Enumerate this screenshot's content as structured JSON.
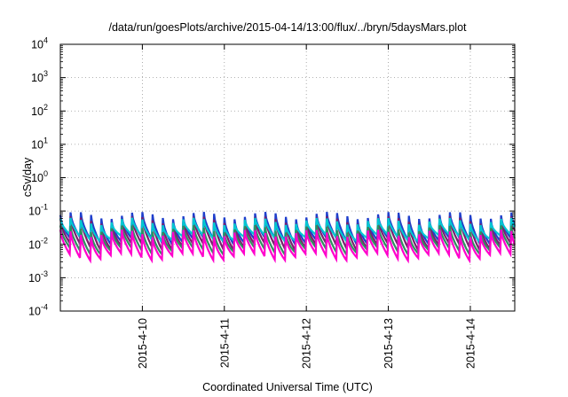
{
  "chart_data": {
    "type": "line",
    "title": "/data/run/goesPlots/archive/2015-04-14/13:00/flux/../bryn/5daysMars.plot",
    "xlabel": "Coordinated Universal Time (UTC)",
    "ylabel": "cSv/day",
    "yscale": "log",
    "ylim": [
      0.0001,
      10000
    ],
    "xlim": [
      "2015-04-09 00:00",
      "2015-04-14 13:00"
    ],
    "grid": true,
    "y_ticks": [
      {
        "value": 0.0001,
        "base": "10",
        "exp": "-4"
      },
      {
        "value": 0.001,
        "base": "10",
        "exp": "-3"
      },
      {
        "value": 0.01,
        "base": "10",
        "exp": "-2"
      },
      {
        "value": 0.1,
        "base": "10",
        "exp": "-1"
      },
      {
        "value": 1,
        "base": "10",
        "exp": "0"
      },
      {
        "value": 10,
        "base": "10",
        "exp": "1"
      },
      {
        "value": 100,
        "base": "10",
        "exp": "2"
      },
      {
        "value": 1000,
        "base": "10",
        "exp": "3"
      },
      {
        "value": 10000,
        "base": "10",
        "exp": "4"
      }
    ],
    "x_ticks": [
      {
        "value": "2015-04-10 00:00",
        "label": "2015-4-10"
      },
      {
        "value": "2015-04-11 00:00",
        "label": "2015-4-11"
      },
      {
        "value": "2015-04-12 00:00",
        "label": "2015-4-12"
      },
      {
        "value": "2015-04-13 00:00",
        "label": "2015-4-13"
      },
      {
        "value": "2015-04-14 00:00",
        "label": "2015-4-14"
      }
    ],
    "sawtooth_period_hours": 3,
    "series": [
      {
        "color": "#1f3fcc",
        "peak": 0.075,
        "trough": 0.012
      },
      {
        "color": "#7a1f6e",
        "peak": 0.055,
        "trough": 0.008
      },
      {
        "color": "#00c8d2",
        "peak": 0.05,
        "trough": 0.015
      },
      {
        "color": "#2f8f5f",
        "peak": 0.03,
        "trough": 0.006
      },
      {
        "color": "#ff00cc",
        "peak": 0.022,
        "trough": 0.004
      }
    ]
  }
}
